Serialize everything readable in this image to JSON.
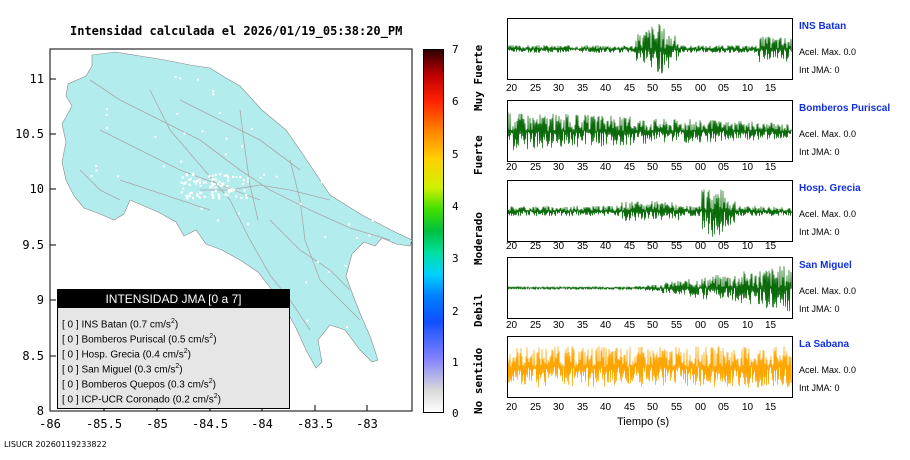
{
  "title": "Intensidad calculada el 2026/01/19_05:38:20_PM",
  "footer": "LISUCR 20260119233822",
  "map": {
    "xticks": [
      "-86",
      "-85.5",
      "-85",
      "-84.5",
      "-84",
      "-83.5",
      "-83"
    ],
    "yticks": [
      "11",
      "10.5",
      "10",
      "9.5",
      "9",
      "8.5",
      "8"
    ],
    "land_color": "#b3ecec",
    "road_color": "#aaaaaa"
  },
  "legend": {
    "header": "INTENSIDAD JMA [0 a 7]",
    "items": [
      {
        "label": "[ 0 ]  INS Batan (0.7 cm/s",
        "sup": "2",
        "tail": ")"
      },
      {
        "label": "[ 0 ]  Bomberos Puriscal (0.5 cm/s",
        "sup": "2",
        "tail": ")"
      },
      {
        "label": "[ 0 ]  Hosp. Grecia (0.4 cm/s",
        "sup": "2",
        "tail": ")"
      },
      {
        "label": "[ 0 ]  San Miguel (0.3 cm/s",
        "sup": "2",
        "tail": ")"
      },
      {
        "label": "[ 0 ]  Bomberos Quepos (0.3 cm/s",
        "sup": "2",
        "tail": ")"
      },
      {
        "label": "[ 0 ]  ICP-UCR Coronado (0.2 cm/s",
        "sup": "2",
        "tail": ")"
      }
    ]
  },
  "colorbar": {
    "numbers": [
      "7",
      "6",
      "5",
      "4",
      "3",
      "2",
      "1",
      "0"
    ],
    "words": [
      "Muy Fuerte",
      "Fuerte",
      "Moderado",
      "Debil",
      "No sentido"
    ]
  },
  "stations": [
    {
      "name": "INS Batan",
      "acel": "Acel. Max. 0.0",
      "jma": "Int JMA: 0",
      "color": "#0b6b0b"
    },
    {
      "name": "Bomberos Puriscal",
      "acel": "Acel. Max. 0.0",
      "jma": "Int JMA: 0",
      "color": "#0b6b0b"
    },
    {
      "name": "Hosp. Grecia",
      "acel": "Acel. Max. 0.0",
      "jma": "Int JMA: 0",
      "color": "#0b6b0b"
    },
    {
      "name": "San Miguel",
      "acel": "Acel. Max. 0.0",
      "jma": "Int JMA: 0",
      "color": "#0b6b0b"
    },
    {
      "name": "La Sabana",
      "acel": "Acel. Max. 0.0",
      "jma": "Int JMA: 0",
      "color": "#ffa500"
    }
  ],
  "time_ticks": [
    "20",
    "25",
    "30",
    "35",
    "40",
    "45",
    "50",
    "55",
    "00",
    "05",
    "10",
    "15"
  ],
  "xlabel": "Tiempo (s)"
}
